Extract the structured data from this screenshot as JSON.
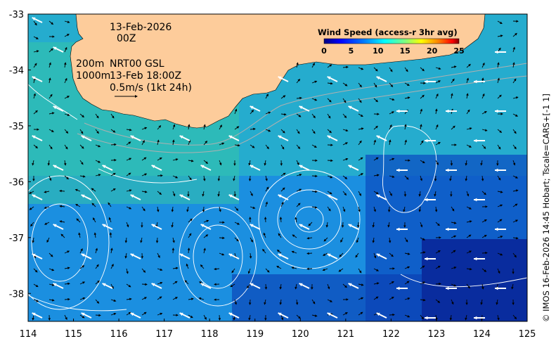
{
  "map": {
    "lon_ticks": [
      "114",
      "115",
      "116",
      "117",
      "118",
      "119",
      "120",
      "121",
      "122",
      "123",
      "124",
      "125"
    ],
    "lat_ticks": [
      "-33",
      "-34",
      "-35",
      "-36",
      "-37",
      "-38"
    ],
    "lon_range": [
      114,
      125
    ],
    "lat_range": [
      -38.5,
      -33
    ]
  },
  "annotations": {
    "date": "13-Feb-2026",
    "time": "00Z",
    "depth_200": "200m",
    "label_nrt": "NRT00 GSL",
    "depth_1000": "1000m",
    "wind_time": "13-Feb 18:00Z",
    "scale_label": "0.5m/s (1kt 24h)"
  },
  "legend": {
    "title": "Wind Speed (access-r 3hr avg)",
    "ticks": [
      "0",
      "5",
      "10",
      "15",
      "20",
      "25"
    ],
    "colors": [
      "#00007f",
      "#0000ff",
      "#007fff",
      "#00ffff",
      "#7fff7f",
      "#ffff00",
      "#ff7f00",
      "#ff0000",
      "#7f0000"
    ]
  },
  "credit": "© IMOS 16-Feb-2026 14:45 Hobart; Tscale=CARS+[-1 1]",
  "colors": {
    "land": "#fdcc9b",
    "ocean_shallow": "#33c8a4",
    "ocean_mid": "#1aa6d6",
    "ocean_deep": "#0a4fc0",
    "ocean_deepest": "#08239a"
  }
}
